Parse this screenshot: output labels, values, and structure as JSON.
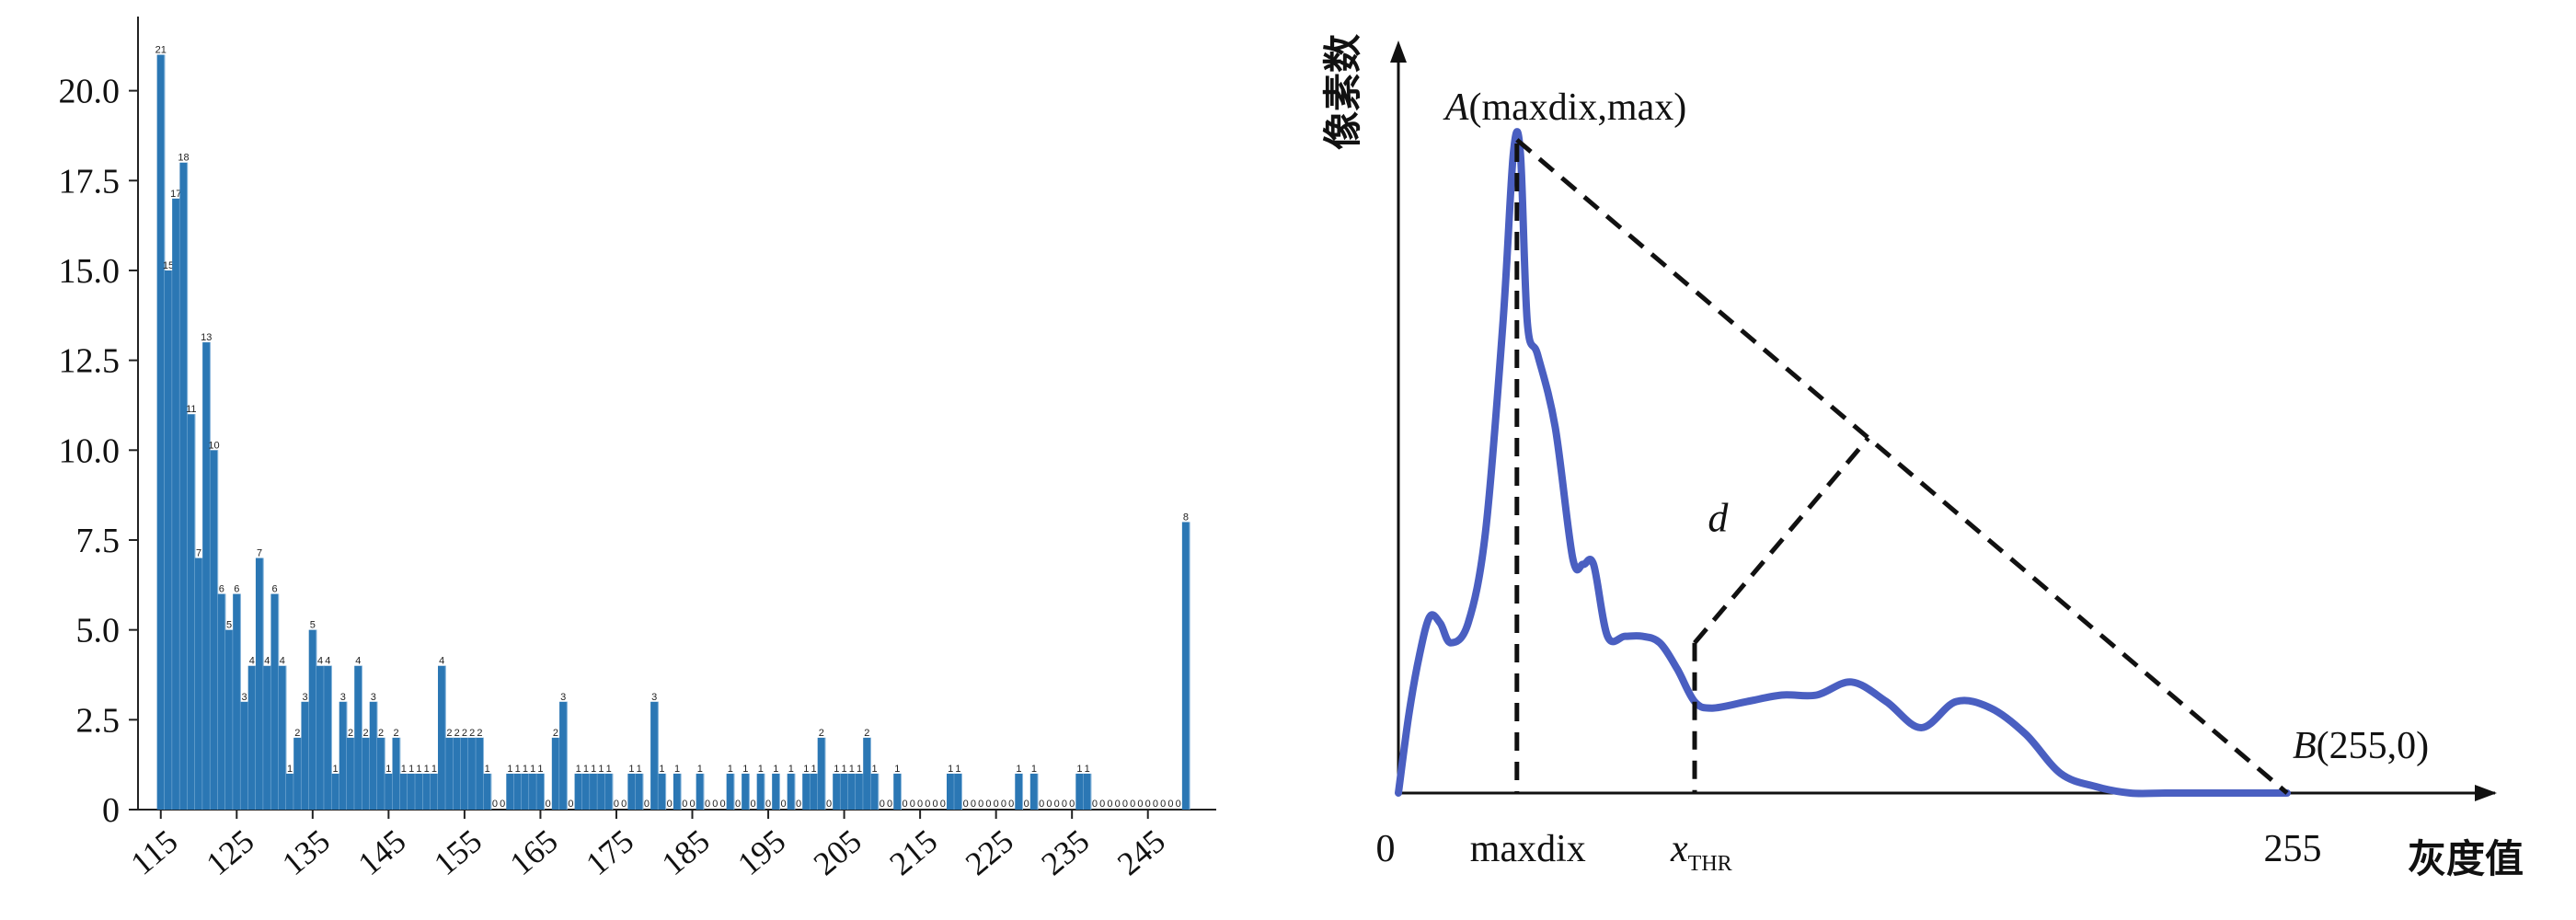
{
  "chart_data": [
    {
      "type": "bar",
      "title": "",
      "xlabel": "",
      "ylabel": "",
      "ylim": [
        0,
        21.5
      ],
      "xlim": [
        112,
        254
      ],
      "color": "#2b77b4",
      "grid": false,
      "y_ticks": [
        "0",
        "2.5",
        "5.0",
        "7.5",
        "10.0",
        "12.5",
        "15.0",
        "17.5",
        "20.0"
      ],
      "x_ticks": [
        "115",
        "125",
        "135",
        "145",
        "155",
        "165",
        "175",
        "185",
        "195",
        "205",
        "215",
        "225",
        "235",
        "245"
      ],
      "x": [
        115,
        116,
        117,
        118,
        119,
        120,
        121,
        122,
        123,
        124,
        125,
        126,
        127,
        128,
        129,
        130,
        131,
        132,
        133,
        134,
        135,
        136,
        137,
        138,
        139,
        140,
        141,
        142,
        143,
        144,
        145,
        146,
        147,
        148,
        149,
        150,
        151,
        152,
        153,
        154,
        155,
        156,
        157,
        158,
        159,
        160,
        161,
        162,
        163,
        164,
        165,
        166,
        167,
        168,
        169,
        170,
        171,
        172,
        173,
        174,
        175,
        176,
        177,
        178,
        179,
        180,
        181,
        182,
        183,
        184,
        185,
        186,
        187,
        188,
        189,
        190,
        191,
        192,
        193,
        194,
        195,
        196,
        197,
        198,
        199,
        200,
        201,
        202,
        203,
        204,
        205,
        206,
        207,
        208,
        209,
        210,
        211,
        212,
        213,
        214,
        215,
        216,
        217,
        218,
        219,
        220,
        221,
        222,
        223,
        224,
        225,
        226,
        227,
        228,
        229,
        230,
        231,
        232,
        233,
        234,
        235,
        236,
        237,
        238,
        239,
        240,
        241,
        242,
        243,
        244,
        245,
        246,
        247,
        248,
        249,
        250
      ],
      "values": [
        21,
        15,
        17,
        18,
        11,
        7,
        13,
        10,
        6,
        5,
        6,
        3,
        4,
        7,
        4,
        6,
        4,
        1,
        2,
        3,
        5,
        4,
        4,
        1,
        3,
        2,
        4,
        2,
        3,
        2,
        1,
        2,
        1,
        1,
        1,
        1,
        1,
        4,
        2,
        2,
        2,
        2,
        2,
        1,
        0,
        0,
        1,
        1,
        1,
        1,
        1,
        0,
        2,
        3,
        0,
        1,
        1,
        1,
        1,
        1,
        0,
        0,
        1,
        1,
        0,
        3,
        1,
        0,
        1,
        0,
        0,
        1,
        0,
        0,
        0,
        1,
        0,
        1,
        0,
        1,
        0,
        1,
        0,
        1,
        0,
        1,
        1,
        2,
        0,
        1,
        1,
        1,
        1,
        2,
        1,
        0,
        0,
        1,
        0,
        0,
        0,
        0,
        0,
        0,
        1,
        1,
        0,
        0,
        0,
        0,
        0,
        0,
        0,
        1,
        0,
        1,
        0,
        0,
        0,
        0,
        0,
        1,
        1,
        0,
        0,
        0,
        0,
        0,
        0,
        0,
        0,
        0,
        0,
        0,
        0,
        8
      ],
      "data_labels": [
        "21",
        "15",
        "17",
        "18",
        "11",
        "7",
        "13",
        "10",
        "6",
        "5",
        "6",
        "3",
        "4",
        "7",
        "4",
        "6",
        "4",
        "1",
        "2",
        "3",
        "5",
        "4",
        "4",
        "1",
        "3",
        "2",
        "4",
        "2",
        "3",
        "2",
        "1",
        "2",
        "1",
        "1",
        "1",
        "1",
        "1",
        "4",
        "2",
        "2",
        "2",
        "2",
        "2",
        "1",
        "0",
        "0",
        "1",
        "1",
        "1",
        "1",
        "1",
        "0",
        "2",
        "3",
        "0",
        "1",
        "1",
        "1",
        "1",
        "1",
        "0",
        "0",
        "1",
        "1",
        "0",
        "3",
        "1",
        "0",
        "1",
        "0",
        "0",
        "1",
        "0",
        "0",
        "0",
        "1",
        "0",
        "1",
        "0",
        "1",
        "0",
        "1",
        "0",
        "1",
        "0",
        "1",
        "1",
        "2",
        "0",
        "1",
        "1",
        "1",
        "1",
        "2",
        "1",
        "0",
        "0",
        "1",
        "0",
        "0",
        "0",
        "0",
        "0",
        "0",
        "1",
        "1",
        "0",
        "0",
        "0",
        "0",
        "0",
        "0",
        "0",
        "1",
        "0",
        "1",
        "0",
        "0",
        "0",
        "0",
        "0",
        "1",
        "1",
        "0",
        "0",
        "0",
        "0",
        "0",
        "0",
        "0",
        "0",
        "0",
        "0",
        "0",
        "0",
        "8"
      ]
    },
    {
      "type": "line",
      "title": "",
      "xlabel": "灰度值",
      "ylabel": "像素数",
      "x_ticks": [
        "0",
        "maxdix",
        "x",
        "255"
      ],
      "x_tick_subscript": "THR",
      "point_a": {
        "name": "A",
        "label": "(maxdix,max)"
      },
      "point_b": {
        "name": "B",
        "label": "(255,0)"
      },
      "distance_label": "d",
      "line_color": "#4a5fc1",
      "curve": {
        "x": [
          0,
          3,
          6,
          9,
          12,
          15,
          20,
          25,
          30,
          33,
          35,
          37,
          40,
          45,
          50,
          53,
          56,
          60,
          65,
          70,
          75,
          80,
          85,
          90,
          100,
          110,
          120,
          130,
          140,
          150,
          160,
          170,
          180,
          190,
          200,
          210,
          220,
          230,
          240,
          245,
          250,
          255
        ],
        "y": [
          0,
          12,
          21,
          27,
          26,
          23,
          26,
          40,
          72,
          98,
          98,
          72,
          67,
          56,
          36,
          35,
          35,
          24,
          24,
          24,
          23,
          19,
          14,
          13,
          14,
          15,
          15,
          17,
          14,
          10,
          14,
          13,
          9,
          3,
          1,
          0,
          0,
          0,
          0,
          0,
          0,
          0
        ]
      }
    }
  ]
}
